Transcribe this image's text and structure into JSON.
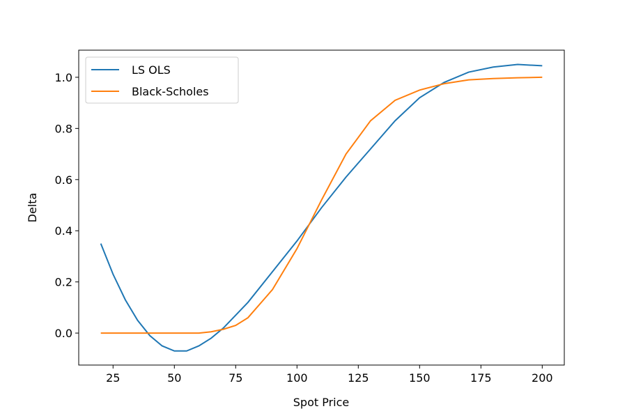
{
  "chart_data": {
    "type": "line",
    "x_label": "Spot Price",
    "y_label": "Delta",
    "x": [
      20,
      25,
      30,
      35,
      40,
      45,
      50,
      55,
      60,
      65,
      70,
      75,
      80,
      90,
      100,
      110,
      120,
      130,
      140,
      150,
      160,
      170,
      180,
      190,
      200
    ],
    "series": [
      {
        "name": "LS OLS",
        "color": "#1f77b4",
        "values": [
          0.35,
          0.23,
          0.13,
          0.05,
          -0.01,
          -0.05,
          -0.07,
          -0.07,
          -0.05,
          -0.02,
          0.02,
          0.07,
          0.12,
          0.24,
          0.36,
          0.49,
          0.61,
          0.72,
          0.83,
          0.92,
          0.98,
          1.02,
          1.04,
          1.05,
          1.045
        ]
      },
      {
        "name": "Black-Scholes",
        "color": "#ff7f0e",
        "values": [
          0,
          0,
          0,
          0,
          0,
          0,
          0,
          0,
          0,
          0.005,
          0.015,
          0.03,
          0.06,
          0.17,
          0.33,
          0.52,
          0.7,
          0.83,
          0.91,
          0.95,
          0.975,
          0.99,
          0.995,
          0.998,
          1.0
        ]
      }
    ],
    "xlim": [
      11,
      209
    ],
    "ylim": [
      -0.125,
      1.106
    ],
    "xticks": [
      25,
      50,
      75,
      100,
      125,
      150,
      175,
      200
    ],
    "yticks": [
      {
        "value": 0,
        "label": "0.0"
      },
      0.2,
      0.4,
      0.6,
      0.8,
      {
        "value": 1,
        "label": "1.0"
      }
    ],
    "legend": "upper left",
    "grid": false
  }
}
